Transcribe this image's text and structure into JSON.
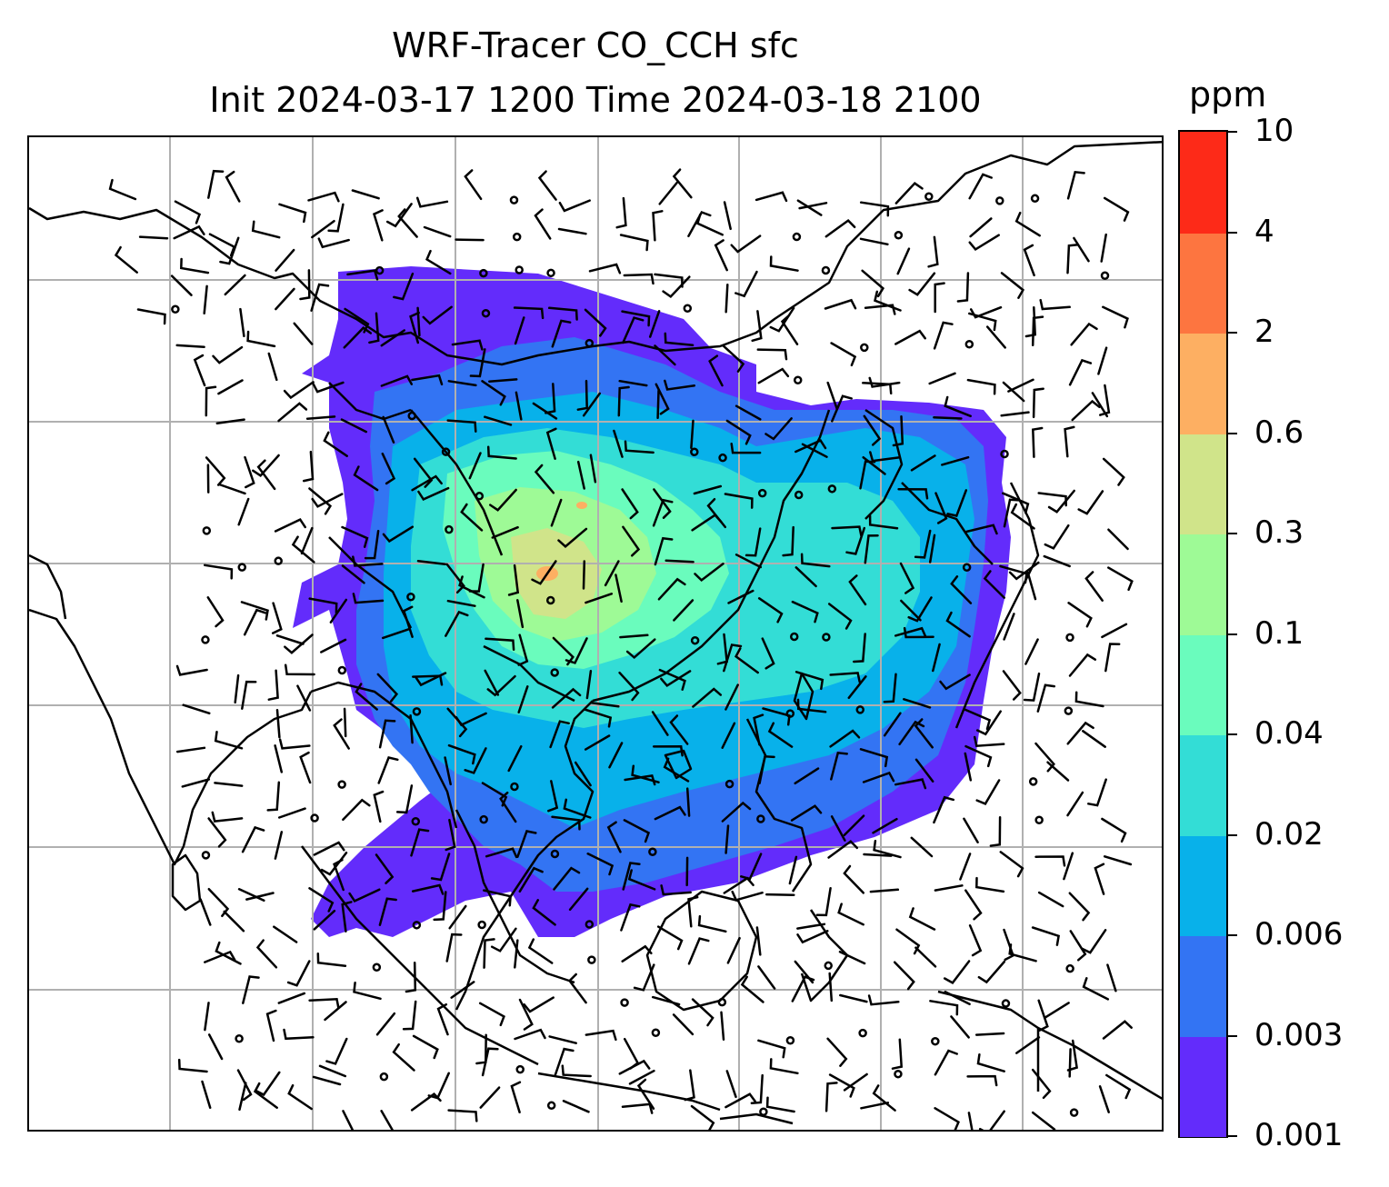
{
  "title": {
    "line1": "WRF-Tracer CO_CCH sfc",
    "line2": "Init 2024-03-17 1200 Time 2024-03-18 2100"
  },
  "colorbar": {
    "unit": "ppm",
    "levels": [
      "0.001",
      "0.003",
      "0.006",
      "0.02",
      "0.04",
      "0.1",
      "0.3",
      "0.6",
      "2",
      "4",
      "10"
    ],
    "colors": [
      "#632cfb",
      "#3374f3",
      "#08b1ea",
      "#33ddd6",
      "#6afcbd",
      "#9efa96",
      "#d0e48a",
      "#fdaf62",
      "#fd7540",
      "#fd2a18"
    ]
  },
  "map": {
    "gridlines": true,
    "coastline_color": "#000000",
    "grid_color": "#b0b0b0",
    "wind_barb_color": "#000000"
  }
}
